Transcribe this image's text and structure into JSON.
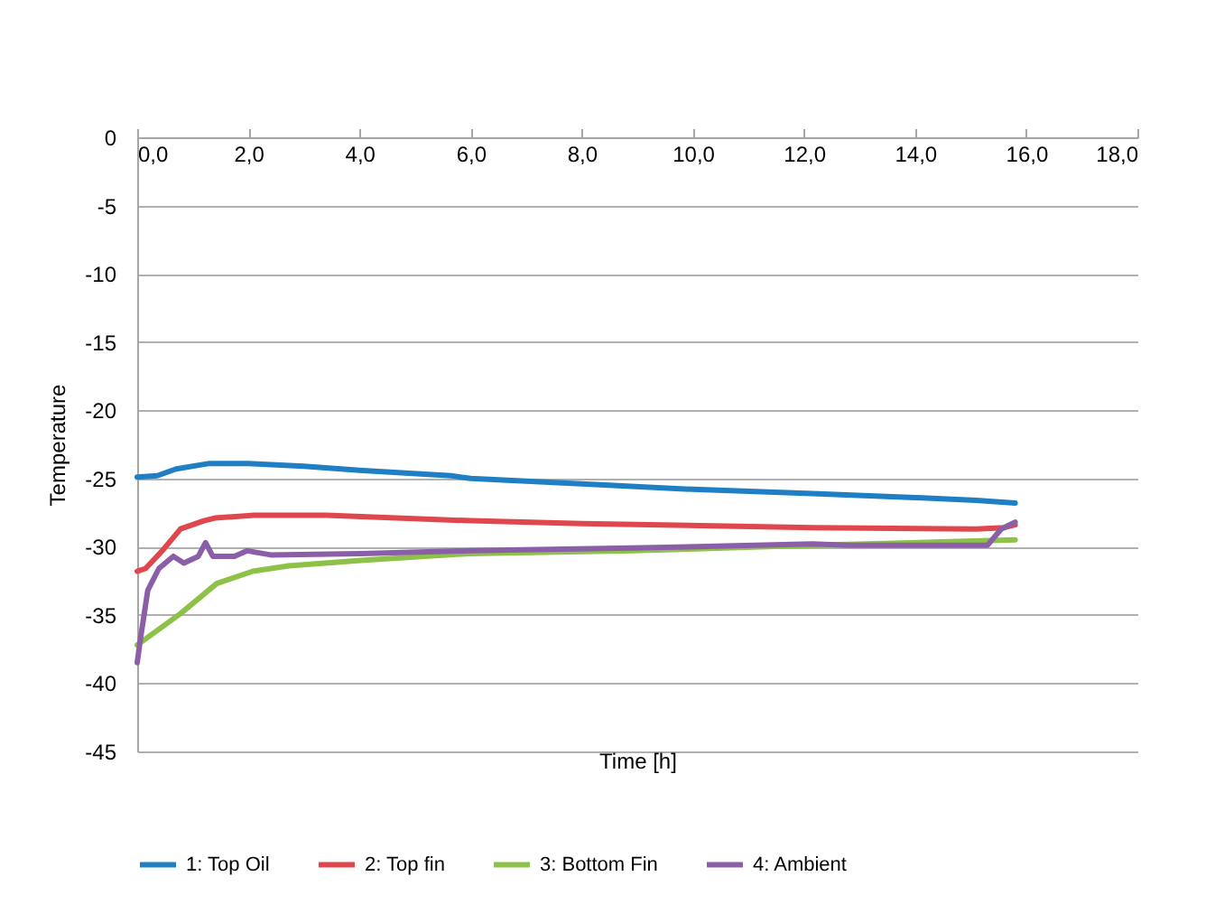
{
  "chart_data": {
    "type": "line",
    "xlabel": "Time [h]",
    "ylabel": "Temperature",
    "xlim": [
      0,
      18
    ],
    "xticks": [
      {
        "value": 0,
        "label": "0,0"
      },
      {
        "value": 2,
        "label": "2,0"
      },
      {
        "value": 4,
        "label": "4,0"
      },
      {
        "value": 6,
        "label": "6,0"
      },
      {
        "value": 8,
        "label": "8,0"
      },
      {
        "value": 10,
        "label": "10,0"
      },
      {
        "value": 12,
        "label": "12,0"
      },
      {
        "value": 14,
        "label": "14,0"
      },
      {
        "value": 16,
        "label": "16,0"
      },
      {
        "value": 18,
        "label": "18,0"
      }
    ],
    "ylim": [
      -45,
      0
    ],
    "yticks": [
      -45,
      -40,
      -35,
      -30,
      -25,
      -20,
      -15,
      -10,
      -5,
      0
    ],
    "grid": "y",
    "legend": "bottom",
    "marker": "none",
    "line_style": "solid",
    "series": [
      {
        "name": "1: Top Oil",
        "color": "#1f7fc4",
        "x": [
          0,
          0.36,
          0.7,
          1.3,
          2.0,
          3.0,
          4.0,
          5.65,
          6.0,
          8.0,
          10.0,
          12.15,
          14.0,
          15.1,
          15.8
        ],
        "values": [
          -24.9,
          -24.8,
          -24.3,
          -23.9,
          -23.9,
          -24.1,
          -24.4,
          -24.8,
          -25.0,
          -25.4,
          -25.8,
          -26.1,
          -26.4,
          -26.6,
          -26.8
        ]
      },
      {
        "name": "2: Top fin",
        "color": "#e0474c",
        "x": [
          0,
          0.15,
          0.45,
          0.78,
          1.2,
          1.4,
          2.1,
          3.4,
          6.0,
          8.0,
          12.15,
          15.1,
          15.6,
          15.8
        ],
        "values": [
          -31.8,
          -31.6,
          -30.3,
          -28.7,
          -28.1,
          -27.9,
          -27.7,
          -27.7,
          -28.1,
          -28.3,
          -28.6,
          -28.7,
          -28.6,
          -28.4
        ]
      },
      {
        "name": "3: Bottom Fin",
        "color": "#8dc147",
        "x": [
          0,
          0.78,
          1.43,
          2.08,
          2.73,
          4.03,
          5.98,
          8.9,
          12.15,
          15.8
        ],
        "values": [
          -37.2,
          -34.9,
          -32.7,
          -31.8,
          -31.4,
          -31.0,
          -30.5,
          -30.3,
          -29.9,
          -29.5
        ]
      },
      {
        "name": "4: Ambient",
        "color": "#8b5ea8",
        "x": [
          0,
          0.06,
          0.19,
          0.39,
          0.65,
          0.84,
          1.1,
          1.23,
          1.36,
          1.75,
          1.98,
          2.4,
          4.03,
          5.98,
          8.9,
          12.15,
          12.8,
          15.1,
          15.3,
          15.55,
          15.8
        ],
        "values": [
          -38.5,
          -36.7,
          -33.2,
          -31.6,
          -30.7,
          -31.2,
          -30.7,
          -29.7,
          -30.7,
          -30.7,
          -30.3,
          -30.6,
          -30.5,
          -30.3,
          -30.1,
          -29.8,
          -29.9,
          -29.9,
          -29.9,
          -28.7,
          -28.2
        ]
      }
    ]
  }
}
